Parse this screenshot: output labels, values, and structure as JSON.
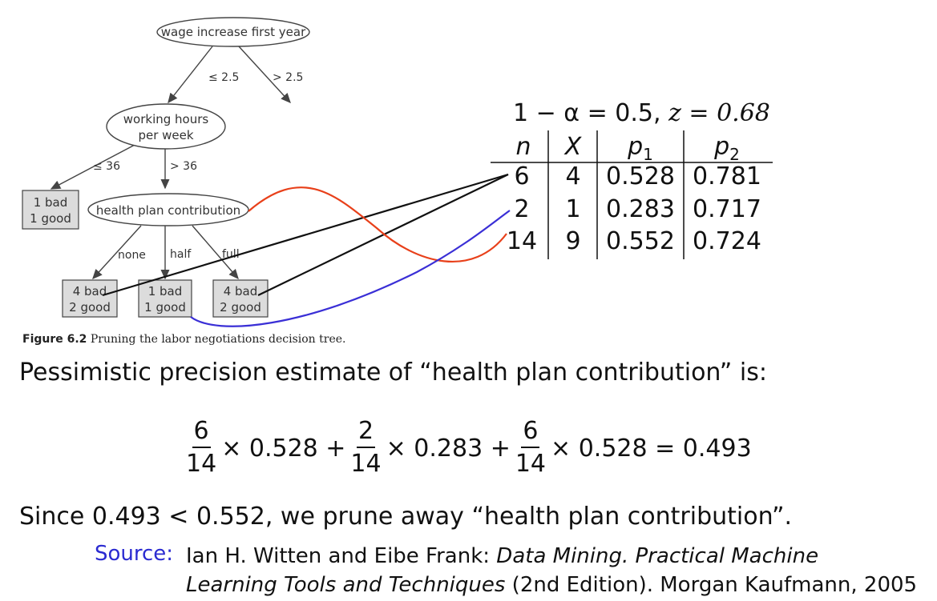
{
  "tree": {
    "root": "wage increase first year",
    "root_edges": [
      "≤ 2.5",
      "> 2.5"
    ],
    "hours_line1": "working hours",
    "hours_line2": "per week",
    "hours_edges": [
      "≤ 36",
      "> 36"
    ],
    "leaf_left_line1": "1 bad",
    "leaf_left_line2": "1 good",
    "health": "health plan contribution",
    "health_edges": [
      "none",
      "half",
      "full"
    ],
    "leaves": [
      {
        "line1": "4 bad",
        "line2": "2 good"
      },
      {
        "line1": "1 bad",
        "line2": "1 good"
      },
      {
        "line1": "4 bad",
        "line2": "2 good"
      }
    ]
  },
  "figure_caption": {
    "label": "Figure 6.2",
    "text": "Pruning the labor negotiations decision tree."
  },
  "confidence": {
    "lhs": "1 − α = 0.5,",
    "z": "z = 0.68"
  },
  "table": {
    "headers": [
      "n",
      "X",
      "p1",
      "p2"
    ],
    "rows": [
      [
        "6",
        "4",
        "0.528",
        "0.781"
      ],
      [
        "2",
        "1",
        "0.283",
        "0.717"
      ],
      [
        "14",
        "9",
        "0.552",
        "0.724"
      ]
    ]
  },
  "text": {
    "estimate_intro": "Pessimistic precision estimate of “health plan contribution” is:",
    "conclusion": "Since 0.493 < 0.552, we prune away “health plan contribution”."
  },
  "formula": {
    "f1_num": "6",
    "f1_den": "14",
    "t1": "× 0.528 +",
    "f2_num": "2",
    "f2_den": "14",
    "t2": "× 0.283 +",
    "f3_num": "6",
    "f3_den": "14",
    "t3": "× 0.528 = 0.493"
  },
  "source": {
    "label": "Source:",
    "authors": "Ian H. Witten and Eibe Frank: ",
    "title1": "Data Mining. Practical Machine",
    "title2": "Learning Tools and Techniques",
    "rest": " (2nd Edition). Morgan Kaufmann, 2005"
  },
  "colors": {
    "red_connector": "#e8401a",
    "blue_connector": "#3a2fd6",
    "source_label": "#2b2bd1",
    "leaf_fill": "#dcdcdc"
  }
}
